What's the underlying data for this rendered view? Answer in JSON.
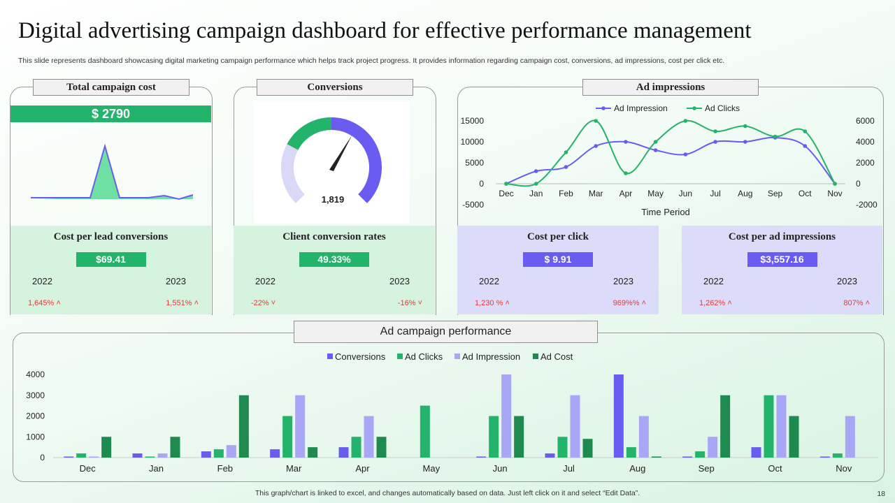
{
  "page": {
    "title": "Digital advertising campaign dashboard for effective performance management",
    "subtitle": "This slide represents dashboard showcasing digital marketing campaign performance which helps track project progress. It provides information regarding campaign cost, conversions, ad impressions, cost per click etc.",
    "footer": "This graph/chart is linked to excel, and changes automatically based on data. Just left click on it and select “Edit Data”.",
    "page_number": "18"
  },
  "colors": {
    "green": "#23b36a",
    "dark_green": "#1e8a4f",
    "purple": "#6a5cf0",
    "light_purple": "#a9a6f5",
    "pale_green": "#d6f3e0",
    "pale_purple": "#dcdcfa",
    "red": "#e53935"
  },
  "total_cost": {
    "title": "Total campaign cost",
    "value": "$ 2790"
  },
  "conversions": {
    "title": "Conversions",
    "value": "1,819",
    "gauge_fraction": 0.62
  },
  "ad_impressions": {
    "title": "Ad impressions",
    "xlabel": "Time Period"
  },
  "metrics": [
    {
      "title": "Cost per lead conversions",
      "value": "$69.41",
      "year1": "2022",
      "year2": "2023",
      "change1": "1,645%",
      "change2": "1,551%",
      "dir1": "up",
      "dir2": "up"
    },
    {
      "title": "Client conversion rates",
      "value": "49.33%",
      "year1": "2022",
      "year2": "2023",
      "change1": "-22%",
      "change2": "-16%",
      "dir1": "down",
      "dir2": "down"
    },
    {
      "title": "Cost per click",
      "value": "$ 9.91",
      "year1": "2022",
      "year2": "2023",
      "change1": "1,230 %",
      "change2": "969%%",
      "dir1": "up",
      "dir2": "up"
    },
    {
      "title": "Cost per ad impressions",
      "value": "$3,557.16",
      "year1": "2022",
      "year2": "2023",
      "change1": "1,262%",
      "change2": "807%",
      "dir1": "up",
      "dir2": "up"
    }
  ],
  "performance": {
    "title": "Ad campaign performance"
  },
  "chart_data": [
    {
      "type": "area",
      "series": [
        {
          "values": [
            0,
            0,
            0,
            0,
            0,
            0,
            0,
            0,
            0,
            0,
            0,
            0,
            10,
            10,
            10,
            10,
            10,
            10,
            10,
            10
          ]
        }
      ]
    },
    {
      "type": "line",
      "title": "",
      "xlabel": "Time Period",
      "categories": [
        "Dec",
        "Jan",
        "Feb",
        "Mar",
        "Apr",
        "May",
        "Jun",
        "Jul",
        "Aug",
        "Sep",
        "Oct",
        "Nov"
      ],
      "series": [
        {
          "name": "Ad Impression",
          "axis": "left",
          "values": [
            0,
            3000,
            4000,
            9000,
            10000,
            8000,
            7000,
            10000,
            10000,
            11000,
            9000,
            0
          ]
        },
        {
          "name": "Ad Clicks",
          "axis": "right",
          "values": [
            0,
            0,
            3000,
            6000,
            1000,
            4000,
            6000,
            5000,
            5500,
            4500,
            5000,
            0
          ]
        }
      ],
      "ylim_left": [
        -5000,
        15000
      ],
      "yticks_left": [
        -5000,
        0,
        5000,
        10000,
        15000
      ],
      "ylim_right": [
        -2000,
        6000
      ],
      "yticks_right": [
        -2000,
        0,
        2000,
        4000,
        6000
      ],
      "legend": "top"
    },
    {
      "type": "bar",
      "title": "Ad campaign performance",
      "categories": [
        "Dec",
        "Jan",
        "Feb",
        "Mar",
        "Apr",
        "May",
        "Jun",
        "Jul",
        "Aug",
        "Sep",
        "Oct",
        "Nov"
      ],
      "series": [
        {
          "name": "Conversions",
          "color": "#6a5cf0",
          "values": [
            50,
            200,
            300,
            400,
            500,
            0,
            50,
            200,
            4000,
            50,
            500,
            50
          ]
        },
        {
          "name": "Ad Clicks",
          "color": "#23b36a",
          "values": [
            200,
            50,
            400,
            2000,
            1000,
            2500,
            2000,
            1000,
            500,
            300,
            3000,
            200
          ]
        },
        {
          "name": "Ad Impression",
          "color": "#a9a6f5",
          "values": [
            50,
            200,
            600,
            3000,
            2000,
            0,
            4000,
            3000,
            2000,
            1000,
            3000,
            2000
          ]
        },
        {
          "name": "Ad Cost",
          "color": "#1e8a4f",
          "values": [
            1000,
            1000,
            3000,
            500,
            1000,
            0,
            2000,
            900,
            50,
            3000,
            2000,
            0
          ]
        }
      ],
      "ylim": [
        0,
        4000
      ],
      "yticks": [
        0,
        1000,
        2000,
        3000,
        4000
      ],
      "legend": "top"
    }
  ]
}
